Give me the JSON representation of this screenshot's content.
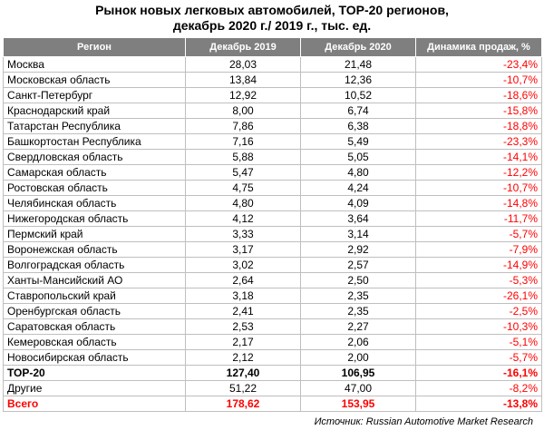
{
  "title": {
    "line1": "Рынок новых легковых автомобилей, ТОР-20 регионов,",
    "line2": "декабрь 2020 г./ 2019 г., тыс. ед."
  },
  "table": {
    "headers": [
      "Регион",
      "Декабрь 2019",
      "Декабрь 2020",
      "Динамика продаж, %"
    ],
    "rows": [
      [
        "Москва",
        "28,03",
        "21,48",
        "-23,4%"
      ],
      [
        "Московская область",
        "13,84",
        "12,36",
        "-10,7%"
      ],
      [
        "Санкт-Петербург",
        "12,92",
        "10,52",
        "-18,6%"
      ],
      [
        "Краснодарский край",
        "8,00",
        "6,74",
        "-15,8%"
      ],
      [
        "Татарстан Республика",
        "7,86",
        "6,38",
        "-18,8%"
      ],
      [
        "Башкортостан Республика",
        "7,16",
        "5,49",
        "-23,3%"
      ],
      [
        "Свердловская область",
        "5,88",
        "5,05",
        "-14,1%"
      ],
      [
        "Самарская область",
        "5,47",
        "4,80",
        "-12,2%"
      ],
      [
        "Ростовская область",
        "4,75",
        "4,24",
        "-10,7%"
      ],
      [
        "Челябинская область",
        "4,80",
        "4,09",
        "-14,8%"
      ],
      [
        "Нижегородская область",
        "4,12",
        "3,64",
        "-11,7%"
      ],
      [
        "Пермский край",
        "3,33",
        "3,14",
        "-5,7%"
      ],
      [
        "Воронежская область",
        "3,17",
        "2,92",
        "-7,9%"
      ],
      [
        "Волгоградская область",
        "3,02",
        "2,57",
        "-14,9%"
      ],
      [
        "Ханты-Мансийский АО",
        "2,64",
        "2,50",
        "-5,3%"
      ],
      [
        "Ставропольский край",
        "3,18",
        "2,35",
        "-26,1%"
      ],
      [
        "Оренбургская область",
        "2,41",
        "2,35",
        "-2,5%"
      ],
      [
        "Саратовская область",
        "2,53",
        "2,27",
        "-10,3%"
      ],
      [
        "Кемеровская область",
        "2,17",
        "2,06",
        "-5,1%"
      ],
      [
        "Новосибирская область",
        "2,12",
        "2,00",
        "-5,7%"
      ]
    ],
    "top20": [
      "ТОР-20",
      "127,40",
      "106,95",
      "-16,1%"
    ],
    "others": [
      "Другие",
      "51,22",
      "47,00",
      "-8,2%"
    ],
    "total": [
      "Всего",
      "178,62",
      "153,95",
      "-13,8%"
    ]
  },
  "source": "Источник: Russian Automotive Market Research",
  "colors": {
    "header_bg": "#7f7f7f",
    "negative": "#ff0000",
    "grid": "#bfbfbf"
  }
}
